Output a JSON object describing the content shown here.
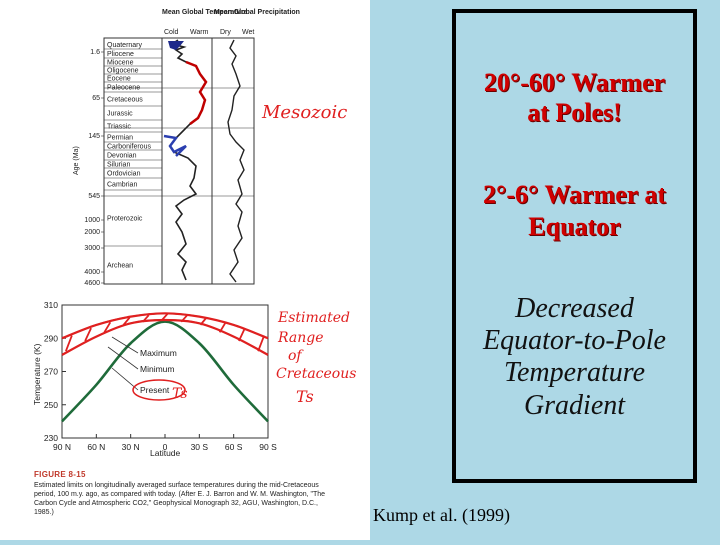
{
  "slide": {
    "bullets": [
      {
        "lines": [
          "20°-60° Warmer",
          "at Poles!"
        ],
        "color": "#d00000"
      },
      {
        "lines": [
          "2°-6° Warmer at",
          "Equator"
        ],
        "color": "#d00000"
      }
    ],
    "italic_lines": [
      "Decreased",
      "Equator-to-Pole",
      "Temperature",
      "Gradient"
    ],
    "citation": "Kump et al. (1999)"
  },
  "figure_top": {
    "col_headers": {
      "temp": "Mean Global Temperature",
      "precip": "Mean Global Precipitation"
    },
    "temp_ends": [
      "Cold",
      "Warm"
    ],
    "precip_ends": [
      "Dry",
      "Wet"
    ],
    "eras": [
      "Quaternary",
      "Pliocene",
      "Miocene",
      "Oligocene",
      "Eocene",
      "Paleocene",
      "Cretaceous",
      "Jurassic",
      "Triassic",
      "Permian",
      "Carboniferous",
      "Devonian",
      "Silurian",
      "Ordovician",
      "Cambrian",
      "Proterozoic",
      "Archean"
    ],
    "age_ticks": [
      "1.6",
      "65",
      "145",
      "545",
      "1000",
      "2000",
      "3000",
      "4000",
      "4600"
    ],
    "age_label": "Age (Ma)",
    "handwritten": "Mesozoic"
  },
  "figure_bottom": {
    "chart_data": {
      "type": "line",
      "xlabel": "Latitude",
      "ylabel": "Temperature (K)",
      "x_ticks": [
        "90 N",
        "60 N",
        "30 N",
        "0",
        "30 S",
        "60 S",
        "90 S"
      ],
      "y_ticks": [
        "310",
        "290",
        "270",
        "250",
        "230"
      ],
      "ylim": [
        230,
        310
      ],
      "x": [
        -90,
        -60,
        -30,
        0,
        30,
        60,
        90
      ],
      "series": [
        {
          "name": "Maximum",
          "values": [
            290,
            298,
            303,
            305,
            303,
            298,
            290
          ]
        },
        {
          "name": "Minimum",
          "values": [
            280,
            291,
            299,
            301,
            299,
            291,
            280
          ]
        },
        {
          "name": "Present",
          "values": [
            240,
            262,
            287,
            300,
            287,
            262,
            240
          ]
        }
      ],
      "legend": [
        "Maximum",
        "Minimum",
        "Present"
      ],
      "annotation_present_label": "Ts",
      "handwritten": [
        "Estimated",
        "Range",
        "of",
        "Cretaceous",
        "Ts"
      ]
    }
  },
  "caption": {
    "label": "FIGURE 8-15",
    "text": "Estimated limits on longitudinally averaged surface temperatures during the mid-Cretaceous period, 100 m.y. ago, as compared with today. (After E. J. Barron and W. M. Washington, \"The Carbon Cycle and Atmospheric CO2,\" Geophysical Monograph 32, AGU, Washington, D.C., 1985.)"
  }
}
